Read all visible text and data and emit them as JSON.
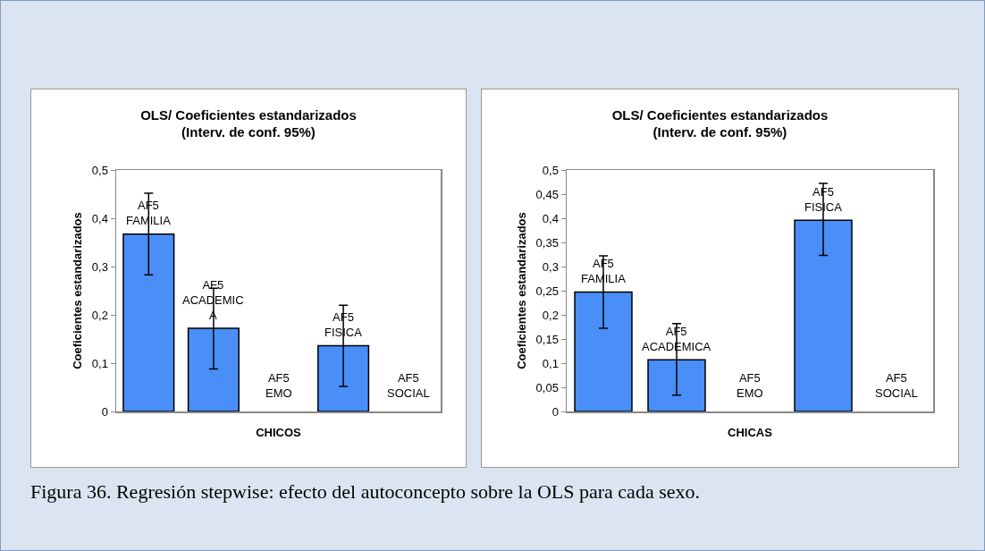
{
  "chart_data": [
    {
      "type": "bar",
      "title": "OLS/ Coeficientes estandarizados\n(Interv. de conf. 95%)",
      "xlabel": "CHICOS",
      "ylabel": "Coeficientes estandarizados",
      "categories": [
        "AF5 FAMILIA",
        "AF5 ACADEMICA",
        "AF5 EMO",
        "AF5 FISICA",
        "AF5 SOCIAL"
      ],
      "values": [
        0.367,
        0.172,
        null,
        0.136,
        null
      ],
      "errors": [
        [
          0.283,
          0.452
        ],
        [
          0.088,
          0.255
        ],
        null,
        [
          0.052,
          0.22
        ],
        null
      ],
      "color": "#4a8ef8",
      "ylim": [
        0,
        0.5
      ],
      "yticks": [
        {
          "value": 0,
          "label": "0"
        },
        {
          "value": 0.1,
          "label": "0,1"
        },
        {
          "value": 0.2,
          "label": "0,2"
        },
        {
          "value": 0.3,
          "label": "0,3"
        },
        {
          "value": 0.4,
          "label": "0,4"
        },
        {
          "value": 0.5,
          "label": "0,5"
        }
      ],
      "tick_labels": "y",
      "grid": false,
      "legend": false
    },
    {
      "type": "bar",
      "title": "OLS/ Coeficientes estandarizados\n(Interv. de conf. 95%)",
      "xlabel": "CHICAS",
      "ylabel": "Coeficientes estandarizados",
      "categories": [
        "AF5 FAMILIA",
        "AF5 ACADEMICA",
        "AF5 EMO",
        "AF5 FISICA",
        "AF5 SOCIAL"
      ],
      "values": [
        0.247,
        0.107,
        null,
        0.396,
        null
      ],
      "errors": [
        [
          0.172,
          0.322
        ],
        [
          0.034,
          0.182
        ],
        null,
        [
          0.323,
          0.472
        ],
        null
      ],
      "color": "#4a8ef8",
      "ylim": [
        0,
        0.5
      ],
      "yticks": [
        {
          "value": 0,
          "label": "0"
        },
        {
          "value": 0.05,
          "label": "0,05"
        },
        {
          "value": 0.1,
          "label": "0,1"
        },
        {
          "value": 0.15,
          "label": "0,15"
        },
        {
          "value": 0.2,
          "label": "0,2"
        },
        {
          "value": 0.25,
          "label": "0,25"
        },
        {
          "value": 0.3,
          "label": "0,3"
        },
        {
          "value": 0.35,
          "label": "0,35"
        },
        {
          "value": 0.4,
          "label": "0,4"
        },
        {
          "value": 0.45,
          "label": "0,45"
        },
        {
          "value": 0.5,
          "label": "0,5"
        }
      ],
      "tick_labels": "y",
      "grid": false,
      "legend": false,
      "annotations": [
        "Figura 36. Regresión stepwise: efecto del autoconcepto sobre la OLS para cada sexo."
      ]
    }
  ]
}
